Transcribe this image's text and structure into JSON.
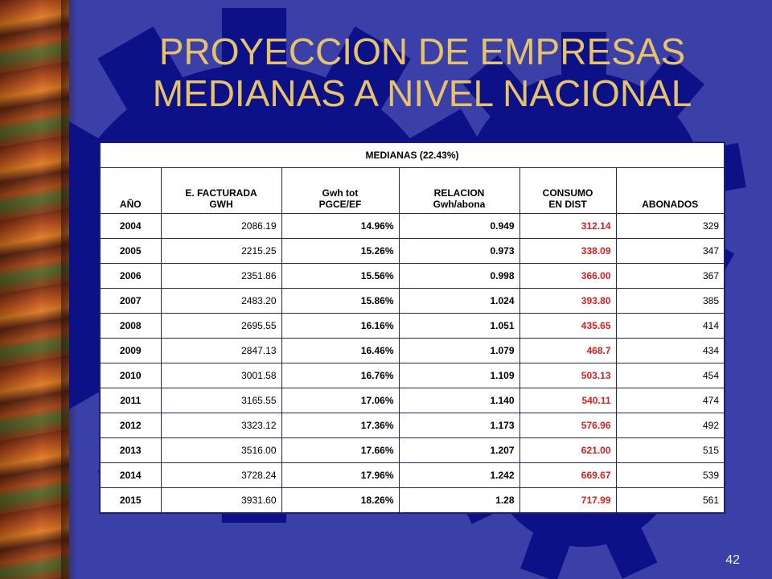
{
  "slide": {
    "title_line1": "PROYECCION DE EMPRESAS",
    "title_line2": "MEDIANAS A NIVEL NACIONAL",
    "page_number": "42"
  },
  "table": {
    "caption": "MEDIANAS (22.43%)",
    "headers": [
      {
        "line1": "AÑO",
        "line2": ""
      },
      {
        "line1": "E. FACTURADA",
        "line2": "GWH"
      },
      {
        "line1": "Gwh tot",
        "line2": "PGCE/EF"
      },
      {
        "line1": "RELACION",
        "line2": "Gwh/abona"
      },
      {
        "line1": "CONSUMO",
        "line2": "EN DIST"
      },
      {
        "line1": "ABONADOS",
        "line2": ""
      }
    ],
    "rows": [
      {
        "year": "2004",
        "fact": "2086.19",
        "pct": "14.96%",
        "rel": "0.949",
        "cons": "312.14",
        "abon": "329"
      },
      {
        "year": "2005",
        "fact": "2215.25",
        "pct": "15.26%",
        "rel": "0.973",
        "cons": "338.09",
        "abon": "347"
      },
      {
        "year": "2006",
        "fact": "2351.86",
        "pct": "15.56%",
        "rel": "0.998",
        "cons": "366.00",
        "abon": "367"
      },
      {
        "year": "2007",
        "fact": "2483.20",
        "pct": "15.86%",
        "rel": "1.024",
        "cons": "393.80",
        "abon": "385"
      },
      {
        "year": "2008",
        "fact": "2695.55",
        "pct": "16.16%",
        "rel": "1.051",
        "cons": "435.65",
        "abon": "414"
      },
      {
        "year": "2009",
        "fact": "2847.13",
        "pct": "16.46%",
        "rel": "1.079",
        "cons": "468.7",
        "abon": "434"
      },
      {
        "year": "2010",
        "fact": "3001.58",
        "pct": "16.76%",
        "rel": "1.109",
        "cons": "503.13",
        "abon": "454"
      },
      {
        "year": "2011",
        "fact": "3165.55",
        "pct": "17.06%",
        "rel": "1.140",
        "cons": "540.11",
        "abon": "474"
      },
      {
        "year": "2012",
        "fact": "3323.12",
        "pct": "17.36%",
        "rel": "1.173",
        "cons": "576.96",
        "abon": "492"
      },
      {
        "year": "2013",
        "fact": "3516.00",
        "pct": "17.66%",
        "rel": "1.207",
        "cons": "621.00",
        "abon": "515"
      },
      {
        "year": "2014",
        "fact": "3728.24",
        "pct": "17.96%",
        "rel": "1.242",
        "cons": "669.67",
        "abon": "539"
      },
      {
        "year": "2015",
        "fact": "3931.60",
        "pct": "18.26%",
        "rel": "1.28",
        "cons": "717.99",
        "abon": "561"
      }
    ]
  },
  "colors": {
    "background": "#3b3fa8",
    "gear": "#0b0f86",
    "title": "#e6c26a",
    "consumo_text": "#d42020"
  },
  "icons": [
    "gear-icon",
    "autumn-leaves-strip"
  ]
}
